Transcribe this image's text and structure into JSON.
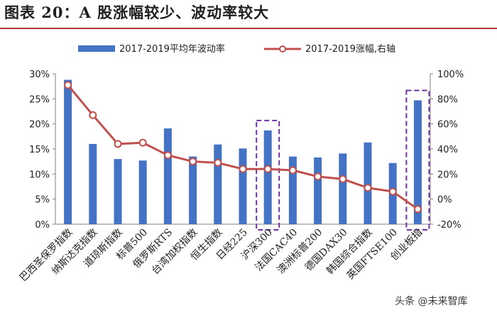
{
  "title": "图表 20：A 股涨幅较少、波动率较大",
  "watermark": "头条 @未来智库",
  "chart_data": {
    "type": "bar+line",
    "categories": [
      "巴西圣保罗指数",
      "纳斯达克指数",
      "道琼斯指数",
      "标普500",
      "俄罗斯RTS",
      "台湾加权指数",
      "恒生指数",
      "日经225",
      "沪深300",
      "法国CAC40",
      "澳洲标普200",
      "德国DAX30",
      "韩国综合指数",
      "英国FTSE100",
      "创业板指"
    ],
    "series": [
      {
        "name": "2017-2019平均年波动率",
        "type": "bar",
        "axis": "left",
        "color": "#4472c4",
        "values": [
          28.8,
          16.0,
          13.0,
          12.7,
          19.1,
          13.5,
          15.9,
          15.1,
          18.7,
          13.5,
          13.3,
          14.1,
          16.3,
          12.2,
          24.7
        ]
      },
      {
        "name": "2017-2019涨幅,右轴",
        "type": "line",
        "axis": "right",
        "color": "#c0504d",
        "values": [
          91,
          67,
          44,
          45,
          35,
          30,
          29,
          24,
          24,
          23,
          18,
          16,
          9,
          6,
          -8
        ]
      }
    ],
    "left_axis": {
      "min": 0,
      "max": 30,
      "step": 5,
      "ticks": [
        "0%",
        "5%",
        "10%",
        "15%",
        "20%",
        "25%",
        "30%"
      ]
    },
    "right_axis": {
      "min": -20,
      "max": 100,
      "step": 20,
      "ticks": [
        "-20%",
        "0%",
        "20%",
        "40%",
        "60%",
        "80%",
        "100%"
      ]
    },
    "highlighted": [
      "沪深300",
      "创业板指"
    ],
    "highlight_color": "#7030a0"
  }
}
